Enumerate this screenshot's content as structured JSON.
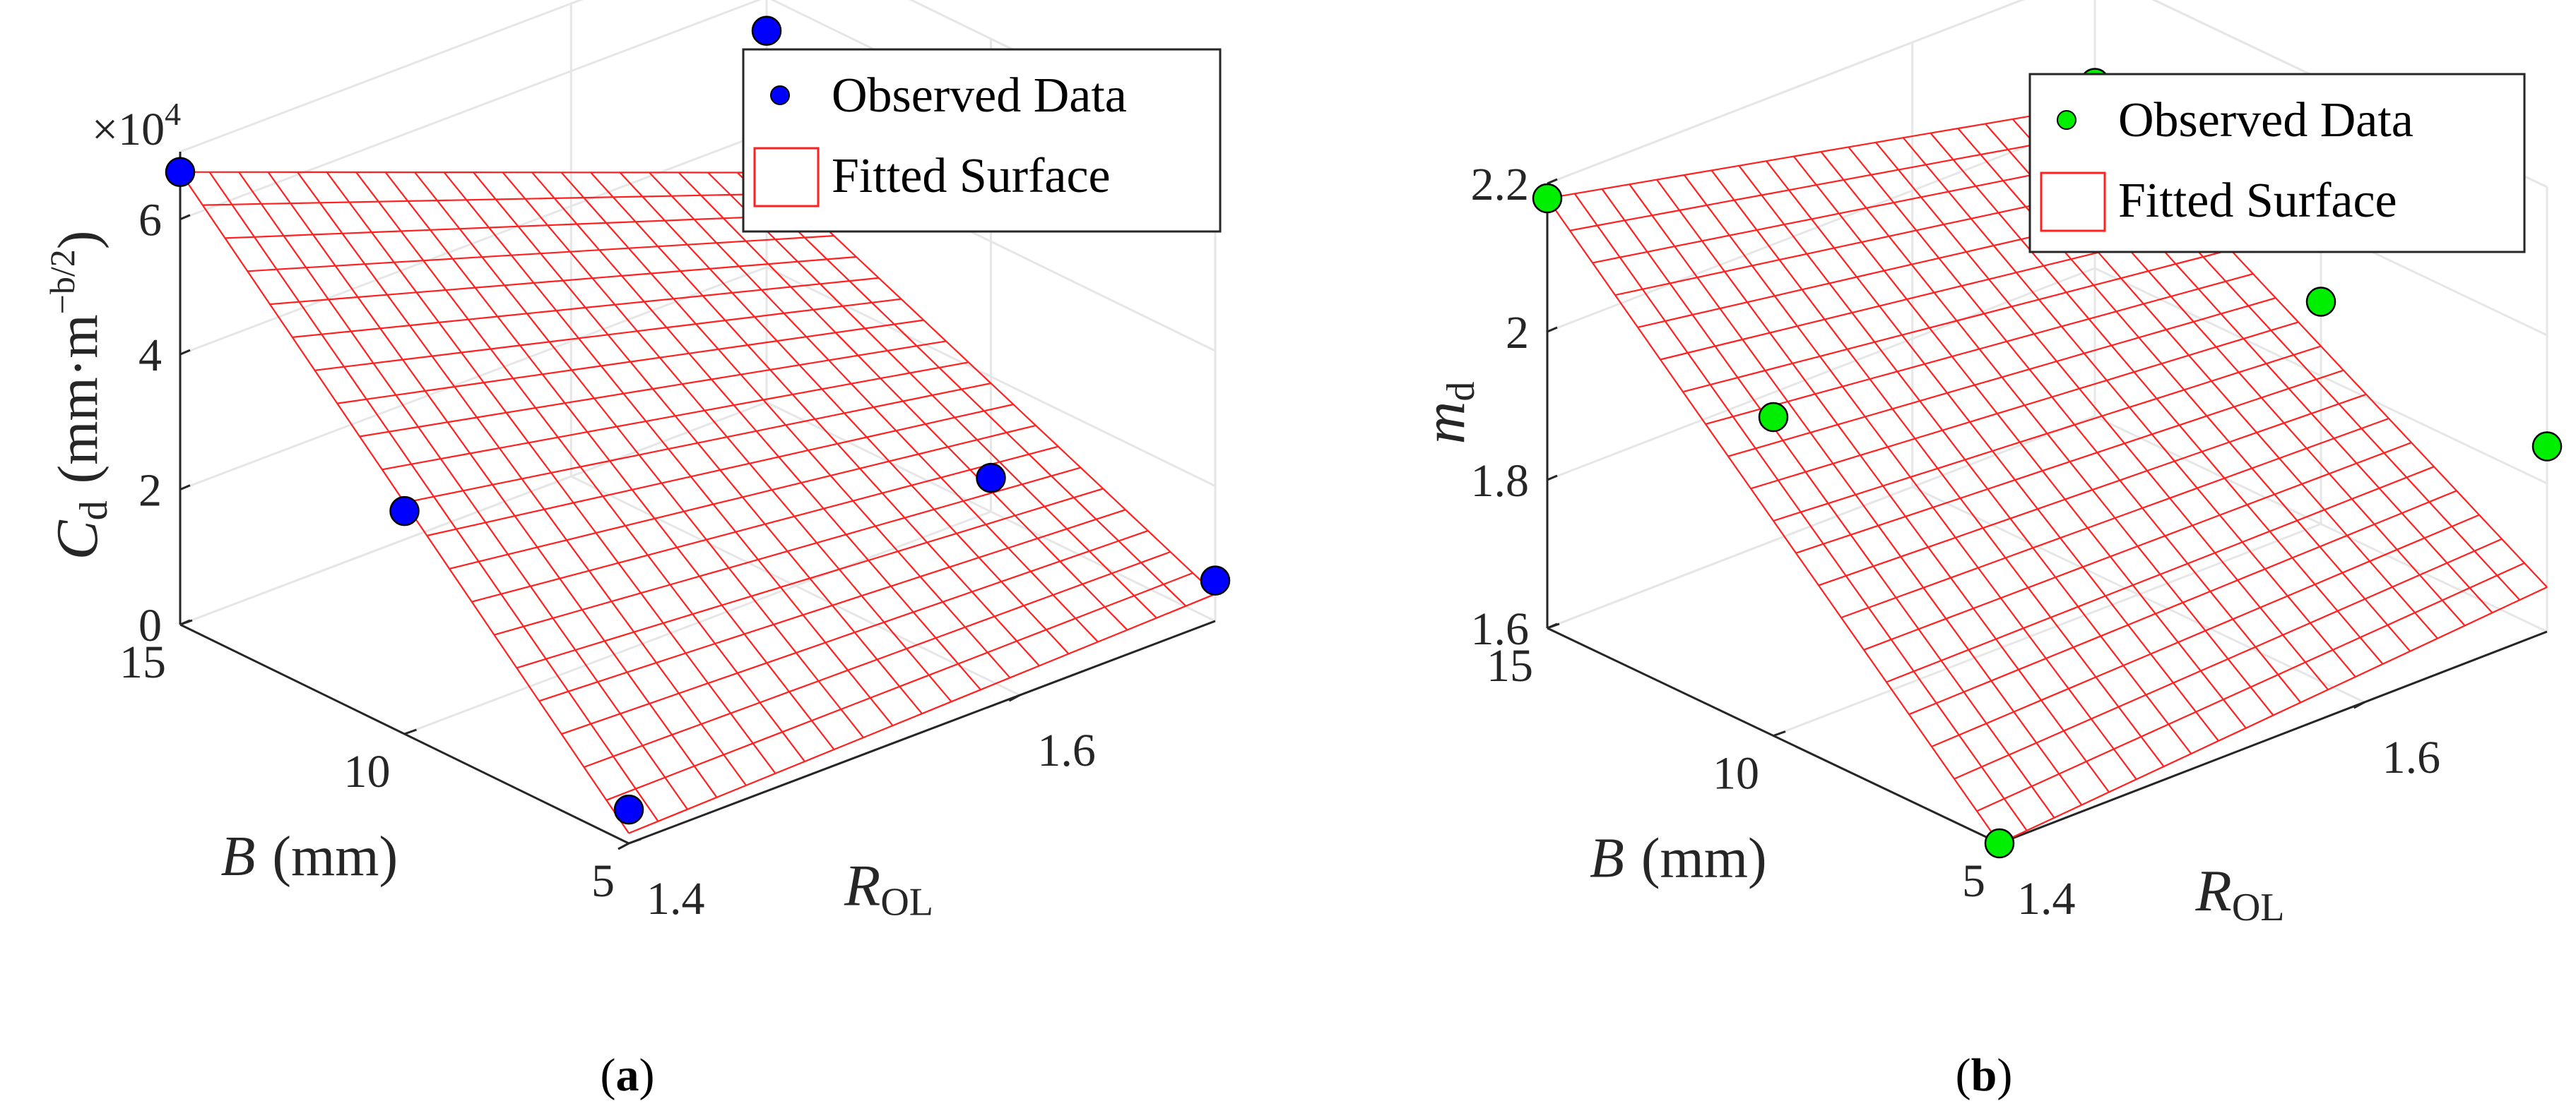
{
  "chart_data": [
    {
      "panel": "(a)",
      "panel_letter": "a",
      "type": "surface3d",
      "legend": {
        "position": "top-right",
        "observed_label": "Observed Data",
        "fitted_label": "Fitted Surface"
      },
      "z_scale_label": "×10",
      "z_scale_exp": "4",
      "zlabel_main": "C",
      "zlabel_sub": "d",
      "zlabel_units": "(mm·m",
      "zlabel_exp": "−b/2",
      "zlabel_close": ")",
      "xlabel_main": "B",
      "xlabel_units": "(mm)",
      "ylabel_main": "R",
      "ylabel_sub": "OL",
      "xlim": [
        5,
        15
      ],
      "ylim": [
        1.4,
        1.7
      ],
      "zlim": [
        0,
        70000
      ],
      "x_ticks": [
        5,
        10,
        15
      ],
      "y_ticks": [
        1.4,
        1.6
      ],
      "z_ticks": [
        0,
        20000,
        40000,
        60000
      ],
      "x_tick_labels": [
        "5",
        "10",
        "15"
      ],
      "y_tick_labels": [
        "1.4",
        "1.6"
      ],
      "z_tick_labels": [
        "0",
        "2",
        "4",
        "6"
      ],
      "marker_color": "#0000ff",
      "surface_color": "#ff2020",
      "surface_corners": {
        "x15_y14": 67000,
        "x5_y14": 1500,
        "x15_y17": 34000,
        "x5_y17": 4000
      },
      "observed": [
        {
          "x": 15,
          "y": 1.4,
          "z": 67000
        },
        {
          "x": 10,
          "y": 1.4,
          "z": 33000
        },
        {
          "x": 5,
          "y": 1.4,
          "z": 5000
        },
        {
          "x": 15,
          "y": 1.7,
          "z": 55000
        },
        {
          "x": 5,
          "y": 1.7,
          "z": 6000
        },
        {
          "x": 10,
          "y": 1.7,
          "z": 5000
        }
      ]
    },
    {
      "panel": "(b)",
      "panel_letter": "b",
      "type": "surface3d",
      "legend": {
        "position": "top-right",
        "observed_label": "Observed Data",
        "fitted_label": "Fitted Surface"
      },
      "zlabel_main": "m",
      "zlabel_sub": "d",
      "xlabel_main": "B",
      "xlabel_units": "(mm)",
      "ylabel_main": "R",
      "ylabel_sub": "OL",
      "xlim": [
        5,
        15
      ],
      "ylim": [
        1.4,
        1.7
      ],
      "zlim": [
        1.6,
        2.2
      ],
      "x_ticks": [
        5,
        10,
        15
      ],
      "y_ticks": [
        1.4,
        1.6
      ],
      "z_ticks": [
        1.6,
        1.8,
        2.0,
        2.2
      ],
      "x_tick_labels": [
        "5",
        "10",
        "15"
      ],
      "y_tick_labels": [
        "1.4",
        "1.6"
      ],
      "z_tick_labels": [
        "1.6",
        "1.8",
        "2",
        "2.2"
      ],
      "marker_color": "#00ee00",
      "surface_color": "#ff2020",
      "surface_corners": {
        "x15_y14": 2.18,
        "x5_y14": 1.6,
        "x15_y17": 2.02,
        "x5_y17": 1.66
      },
      "observed": [
        {
          "x": 15,
          "y": 1.4,
          "z": 2.18
        },
        {
          "x": 10,
          "y": 1.4,
          "z": 2.03
        },
        {
          "x": 15,
          "y": 1.7,
          "z": 2.05
        },
        {
          "x": 5,
          "y": 1.4,
          "z": 1.6
        },
        {
          "x": 10,
          "y": 1.7,
          "z": 1.9
        },
        {
          "x": 5,
          "y": 1.7,
          "z": 1.85
        }
      ]
    }
  ]
}
